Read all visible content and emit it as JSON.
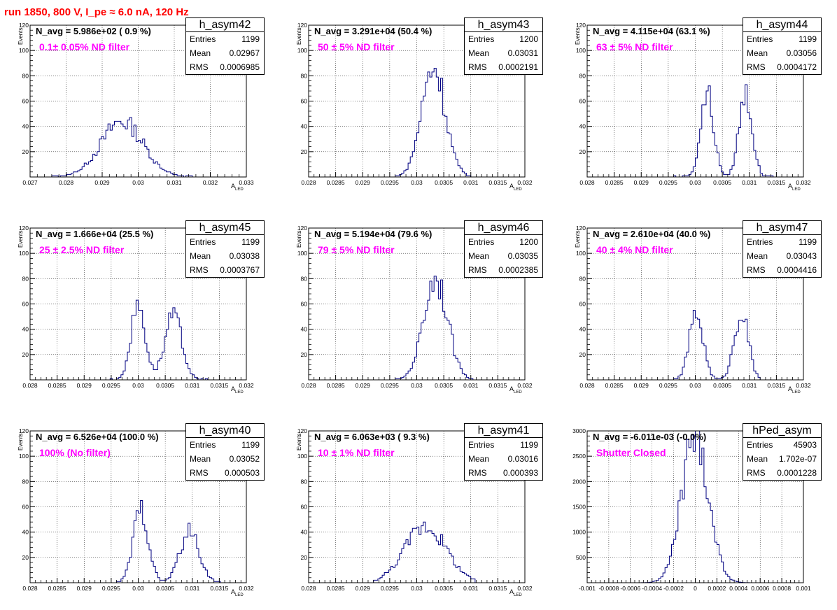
{
  "title": "run 1850,   800 V, I_pe ≈ 6.0 nA, 120 Hz",
  "stat_labels": {
    "entries": "Entries",
    "mean": "Mean",
    "rms": "RMS"
  },
  "colors": {
    "title": "#ff0000",
    "filter_label": "#ff00ff",
    "histogram_line": "#000080"
  },
  "chart_data": [
    {
      "type": "histogram",
      "name": "h_asym42",
      "annotation": "N_avg = 5.986e+02 ( 0.9 %)",
      "filter_label": "0.1± 0.05% ND filter",
      "entries": "1199",
      "mean": "0.02967",
      "rms": "0.0006985",
      "xlabel": "A",
      "xlabel_sub": "LED",
      "ylabel": "Events",
      "xlim": [
        0.027,
        0.033
      ],
      "ylim": [
        0,
        120
      ],
      "grid": true,
      "xticks": [
        0.027,
        0.028,
        0.029,
        0.03,
        0.031,
        0.032,
        0.033
      ],
      "xtick_labels": [
        "0.027",
        "0.028",
        "0.029",
        "0.03",
        "0.031",
        "0.032",
        "0.033"
      ],
      "yticks": [
        20,
        40,
        60,
        80,
        100,
        120
      ],
      "ytick_labels": [
        "20",
        "40",
        "60",
        "80",
        "100",
        "120"
      ],
      "peaks": [
        {
          "mu": 0.02955,
          "sigma": 0.00058,
          "amp": 44
        }
      ],
      "range": [
        0.0276,
        0.0316
      ]
    },
    {
      "type": "histogram",
      "name": "h_asym43",
      "annotation": "N_avg = 3.291e+04 (50.4 %)",
      "filter_label": "50 ± 5% ND filter",
      "entries": "1200",
      "mean": "0.03031",
      "rms": "0.0002191",
      "xlabel": "A",
      "xlabel_sub": "LED",
      "ylabel": "Events",
      "xlim": [
        0.028,
        0.032
      ],
      "ylim": [
        0,
        120
      ],
      "grid": true,
      "xticks": [
        0.028,
        0.0285,
        0.029,
        0.0295,
        0.03,
        0.0305,
        0.031,
        0.0315,
        0.032
      ],
      "xtick_labels": [
        "0.028",
        "0.0285",
        "0.029",
        "0.0295",
        "0.03",
        "0.0305",
        "0.031",
        "0.0315",
        "0.032"
      ],
      "yticks": [
        20,
        40,
        60,
        80,
        100,
        120
      ],
      "ytick_labels": [
        "20",
        "40",
        "60",
        "80",
        "100",
        "120"
      ],
      "peaks": [
        {
          "mu": 0.03031,
          "sigma": 0.00022,
          "amp": 87
        }
      ],
      "range": [
        0.0296,
        0.031
      ]
    },
    {
      "type": "histogram",
      "name": "h_asym44",
      "annotation": "N_avg = 4.115e+04 (63.1 %)",
      "filter_label": "63 ± 5% ND filter",
      "entries": "1199",
      "mean": "0.03056",
      "rms": "0.0004172",
      "xlabel": "A",
      "xlabel_sub": "LED",
      "ylabel": "Events",
      "xlim": [
        0.028,
        0.032
      ],
      "ylim": [
        0,
        120
      ],
      "grid": true,
      "xticks": [
        0.028,
        0.0285,
        0.029,
        0.0295,
        0.03,
        0.0305,
        0.031,
        0.0315,
        0.032
      ],
      "xtick_labels": [
        "0.028",
        "0.0285",
        "0.029",
        "0.0295",
        "0.03",
        "0.0305",
        "0.031",
        "0.0315",
        "0.032"
      ],
      "yticks": [
        20,
        40,
        60,
        80,
        100,
        120
      ],
      "ytick_labels": [
        "20",
        "40",
        "60",
        "80",
        "100",
        "120"
      ],
      "peaks": [
        {
          "mu": 0.03022,
          "sigma": 0.00012,
          "amp": 66
        },
        {
          "mu": 0.03093,
          "sigma": 0.00012,
          "amp": 66
        }
      ],
      "range": [
        0.0296,
        0.0315
      ]
    },
    {
      "type": "histogram",
      "name": "h_asym45",
      "annotation": "N_avg = 1.666e+04 (25.5 %)",
      "filter_label": "25 ± 2.5% ND filter",
      "entries": "1199",
      "mean": "0.03038",
      "rms": "0.0003767",
      "xlabel": "A",
      "xlabel_sub": "LED",
      "ylabel": "Events",
      "xlim": [
        0.028,
        0.032
      ],
      "ylim": [
        0,
        120
      ],
      "grid": true,
      "xticks": [
        0.028,
        0.0285,
        0.029,
        0.0295,
        0.03,
        0.0305,
        0.031,
        0.0315,
        0.032
      ],
      "xtick_labels": [
        "0.028",
        "0.0285",
        "0.029",
        "0.0295",
        "0.03",
        "0.0305",
        "0.031",
        "0.0315",
        "0.032"
      ],
      "yticks": [
        20,
        40,
        60,
        80,
        100,
        120
      ],
      "ytick_labels": [
        "20",
        "40",
        "60",
        "80",
        "100",
        "120"
      ],
      "peaks": [
        {
          "mu": 0.03,
          "sigma": 0.00013,
          "amp": 60
        },
        {
          "mu": 0.03065,
          "sigma": 0.00016,
          "amp": 50
        }
      ],
      "range": [
        0.0295,
        0.0314
      ]
    },
    {
      "type": "histogram",
      "name": "h_asym46",
      "annotation": "N_avg = 5.194e+04 (79.6 %)",
      "filter_label": "79 ± 5% ND filter",
      "entries": "1200",
      "mean": "0.03035",
      "rms": "0.0002385",
      "xlabel": "A",
      "xlabel_sub": "LED",
      "ylabel": "Events",
      "xlim": [
        0.028,
        0.032
      ],
      "ylim": [
        0,
        120
      ],
      "grid": true,
      "xticks": [
        0.028,
        0.0285,
        0.029,
        0.0295,
        0.03,
        0.0305,
        0.031,
        0.0315,
        0.032
      ],
      "xtick_labels": [
        "0.028",
        "0.0285",
        "0.029",
        "0.0295",
        "0.03",
        "0.0305",
        "0.031",
        "0.0315",
        "0.032"
      ],
      "yticks": [
        20,
        40,
        60,
        80,
        100,
        120
      ],
      "ytick_labels": [
        "20",
        "40",
        "60",
        "80",
        "100",
        "120"
      ],
      "peaks": [
        {
          "mu": 0.03035,
          "sigma": 0.00022,
          "amp": 82
        }
      ],
      "range": [
        0.0296,
        0.0311
      ]
    },
    {
      "type": "histogram",
      "name": "h_asym47",
      "annotation": "N_avg = 2.610e+04 (40.0 %)",
      "filter_label": "40 ± 4% ND filter",
      "entries": "1199",
      "mean": "0.03043",
      "rms": "0.0004416",
      "xlabel": "A",
      "xlabel_sub": "LED",
      "ylabel": "Events",
      "xlim": [
        0.028,
        0.032
      ],
      "ylim": [
        0,
        120
      ],
      "grid": true,
      "xticks": [
        0.028,
        0.0285,
        0.029,
        0.0295,
        0.03,
        0.0305,
        0.031,
        0.0315,
        0.032
      ],
      "xtick_labels": [
        "0.028",
        "0.0285",
        "0.029",
        "0.0295",
        "0.03",
        "0.0305",
        "0.031",
        "0.0315",
        "0.032"
      ],
      "yticks": [
        20,
        40,
        60,
        80,
        100,
        120
      ],
      "ytick_labels": [
        "20",
        "40",
        "60",
        "80",
        "100",
        "120"
      ],
      "peaks": [
        {
          "mu": 0.03002,
          "sigma": 0.00013,
          "amp": 52
        },
        {
          "mu": 0.03085,
          "sigma": 0.00013,
          "amp": 54
        }
      ],
      "range": [
        0.0296,
        0.0312
      ]
    },
    {
      "type": "histogram",
      "name": "h_asym40",
      "annotation": "N_avg = 6.526e+04 (100.0 %)",
      "filter_label": "100% (No filter)",
      "entries": "1199",
      "mean": "0.03052",
      "rms": "0.000503",
      "xlabel": "A",
      "xlabel_sub": "LED",
      "ylabel": "Events",
      "xlim": [
        0.028,
        0.032
      ],
      "ylim": [
        0,
        120
      ],
      "grid": true,
      "xticks": [
        0.028,
        0.0285,
        0.029,
        0.0295,
        0.03,
        0.0305,
        0.031,
        0.0315,
        0.032
      ],
      "xtick_labels": [
        "0.028",
        "0.0285",
        "0.029",
        "0.0295",
        "0.03",
        "0.0305",
        "0.031",
        "0.0315",
        "0.032"
      ],
      "yticks": [
        20,
        40,
        60,
        80,
        100,
        120
      ],
      "ytick_labels": [
        "20",
        "40",
        "60",
        "80",
        "100",
        "120"
      ],
      "peaks": [
        {
          "mu": 0.03005,
          "sigma": 0.00014,
          "amp": 58
        },
        {
          "mu": 0.03095,
          "sigma": 0.00018,
          "amp": 40
        }
      ],
      "range": [
        0.0296,
        0.0316
      ]
    },
    {
      "type": "histogram",
      "name": "h_asym41",
      "annotation": "N_avg = 6.063e+03 ( 9.3 %)",
      "filter_label": "10 ± 1% ND filter",
      "entries": "1199",
      "mean": "0.03016",
      "rms": "0.000393",
      "xlabel": "A",
      "xlabel_sub": "LED",
      "ylabel": "Events",
      "xlim": [
        0.028,
        0.032
      ],
      "ylim": [
        0,
        120
      ],
      "grid": true,
      "xticks": [
        0.028,
        0.0285,
        0.029,
        0.0295,
        0.03,
        0.0305,
        0.031,
        0.0315,
        0.032
      ],
      "xtick_labels": [
        "0.028",
        "0.0285",
        "0.029",
        "0.0295",
        "0.03",
        "0.0305",
        "0.031",
        "0.0315",
        "0.032"
      ],
      "yticks": [
        20,
        40,
        60,
        80,
        100,
        120
      ],
      "ytick_labels": [
        "20",
        "40",
        "60",
        "80",
        "100",
        "120"
      ],
      "peaks": [
        {
          "mu": 0.03016,
          "sigma": 0.00038,
          "amp": 45
        }
      ],
      "range": [
        0.0292,
        0.0311
      ]
    },
    {
      "type": "histogram",
      "name": "hPed_asym",
      "annotation": "N_avg = -6.011e-03 (-0.0%)",
      "filter_label": "Shutter Closed",
      "entries": "45903",
      "mean": "1.702e-07",
      "rms": "0.0001228",
      "xlabel": "",
      "xlabel_sub": "",
      "ylabel": "",
      "xlim": [
        -0.001,
        0.001
      ],
      "ylim": [
        0,
        3000
      ],
      "grid": true,
      "xticks": [
        -0.001,
        -0.0008,
        -0.0006,
        -0.0004,
        -0.0002,
        0,
        0.0002,
        0.0004,
        0.0006,
        0.0008,
        0.001
      ],
      "xtick_labels": [
        "-0.001",
        "-0.0008",
        "-0.0006",
        "-0.0004",
        "-0.0002",
        "0",
        "0.0002",
        "0.0004",
        "0.0006",
        "0.0008",
        "0.001"
      ],
      "yticks": [
        500,
        1000,
        1500,
        2000,
        2500,
        3000
      ],
      "ytick_labels": [
        "500",
        "1000",
        "1500",
        "2000",
        "2500",
        "3000"
      ],
      "peaks": [
        {
          "mu": 0.0,
          "sigma": 0.000123,
          "amp": 2950
        }
      ],
      "range": [
        -0.0005,
        0.0005
      ]
    }
  ]
}
